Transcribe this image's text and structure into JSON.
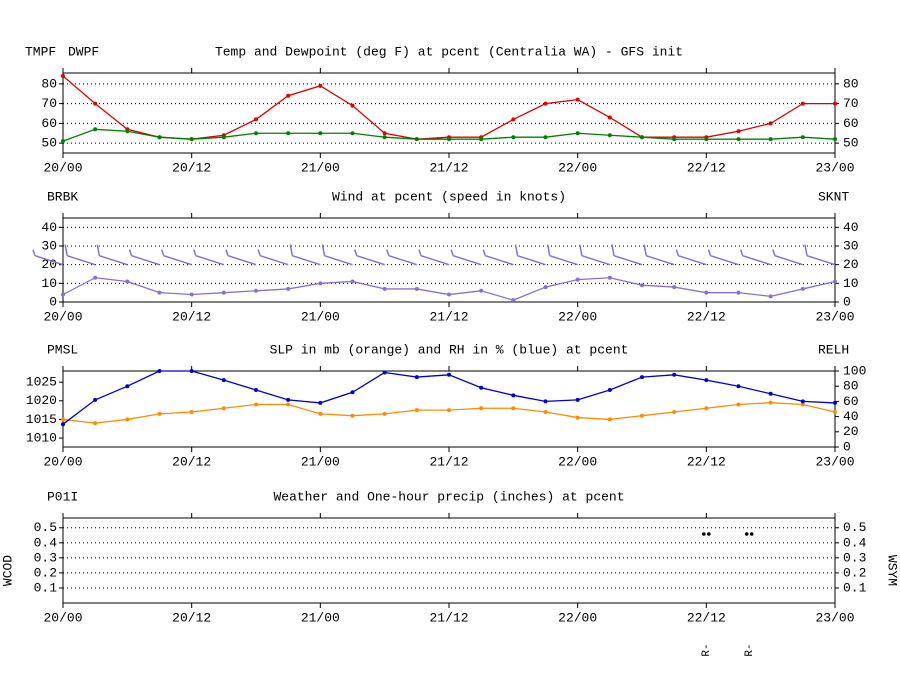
{
  "chart_data": [
    {
      "type": "line",
      "title": "Temp and Dewpoint (deg F) at pcent (Centralia WA) - GFS init",
      "x": [
        0,
        3,
        6,
        9,
        12,
        15,
        18,
        21,
        24,
        27,
        30,
        33,
        36,
        39,
        42,
        45,
        48,
        51,
        54,
        57,
        60,
        63,
        66,
        69,
        72
      ],
      "xlim": [
        0,
        72
      ],
      "xticks": [
        {
          "value": 0,
          "label": "20/00"
        },
        {
          "value": 12,
          "label": "20/12"
        },
        {
          "value": 24,
          "label": "21/00"
        },
        {
          "value": 36,
          "label": "21/12"
        },
        {
          "value": 48,
          "label": "22/00"
        },
        {
          "value": 60,
          "label": "22/12"
        },
        {
          "value": 72,
          "label": "23/00"
        }
      ],
      "ylim": [
        45,
        85.5
      ],
      "yticks": [
        50,
        60,
        70,
        80
      ],
      "grid": true,
      "series": [
        {
          "name": "TMPF",
          "color": "#e00000",
          "values": [
            84,
            70,
            57,
            53,
            52,
            54,
            62,
            74,
            79,
            69,
            55,
            52,
            53,
            53,
            62,
            70,
            72,
            63,
            53,
            53,
            53,
            56,
            60,
            70,
            70
          ]
        },
        {
          "name": "DWPF",
          "color": "#008000",
          "values": [
            51,
            57,
            56,
            53,
            52,
            53,
            55,
            55,
            55,
            55,
            53,
            52,
            52,
            52,
            53,
            53,
            55,
            54,
            53,
            52,
            52,
            52,
            52,
            53,
            52
          ]
        }
      ]
    },
    {
      "type": "line",
      "title": "Wind at  pcent (speed in knots)",
      "barbs_name": "BRBK",
      "barbs_color": "#8a6fd0",
      "x": [
        0,
        3,
        6,
        9,
        12,
        15,
        18,
        21,
        24,
        27,
        30,
        33,
        36,
        39,
        42,
        45,
        48,
        51,
        54,
        57,
        60,
        63,
        66,
        69,
        72
      ],
      "xlim": [
        0,
        72
      ],
      "xticks": [
        {
          "value": 0,
          "label": "20/00"
        },
        {
          "value": 12,
          "label": "20/12"
        },
        {
          "value": 24,
          "label": "21/00"
        },
        {
          "value": 36,
          "label": "21/12"
        },
        {
          "value": 48,
          "label": "22/00"
        },
        {
          "value": 60,
          "label": "22/12"
        },
        {
          "value": 72,
          "label": "23/00"
        }
      ],
      "ylim": [
        0,
        45
      ],
      "yticks": [
        0,
        10,
        20,
        30,
        40
      ],
      "grid": true,
      "series": [
        {
          "name": "SKNT",
          "axis": "y2",
          "color": "#8a6fd0",
          "values": [
            4,
            13,
            11,
            5,
            4,
            5,
            6,
            7,
            10,
            11,
            7,
            7,
            4,
            6,
            1,
            8,
            12,
            13,
            9,
            8,
            5,
            5,
            3,
            7,
            11
          ]
        }
      ]
    },
    {
      "type": "line",
      "title": "SLP in mb (orange) and RH in % (blue) at  pcent",
      "x": [
        0,
        3,
        6,
        9,
        12,
        15,
        18,
        21,
        24,
        27,
        30,
        33,
        36,
        39,
        42,
        45,
        48,
        51,
        54,
        57,
        60,
        63,
        66,
        69,
        72
      ],
      "xlim": [
        0,
        72
      ],
      "xticks": [
        {
          "value": 0,
          "label": "20/00"
        },
        {
          "value": 12,
          "label": "20/12"
        },
        {
          "value": 24,
          "label": "21/00"
        },
        {
          "value": 36,
          "label": "21/12"
        },
        {
          "value": 48,
          "label": "22/00"
        },
        {
          "value": 60,
          "label": "22/12"
        },
        {
          "value": 72,
          "label": "23/00"
        }
      ],
      "ylim": [
        1007.6,
        1028
      ],
      "yticks": [
        1010,
        1015,
        1020,
        1025
      ],
      "y2lim": [
        0,
        100
      ],
      "y2ticks": [
        0,
        20,
        40,
        60,
        80,
        100
      ],
      "grid": false,
      "series": [
        {
          "name": "PMSL",
          "color": "#ff8c00",
          "values": [
            1015,
            1014,
            1015,
            1016.5,
            1017,
            1018,
            1019,
            1019,
            1016.5,
            1016,
            1016.5,
            1017.5,
            1017.5,
            1018,
            1018,
            1017,
            1015.5,
            1015,
            1016,
            1017,
            1018,
            1019,
            1019.5,
            1019,
            1017
          ]
        },
        {
          "name": "RELH",
          "axis": "y2",
          "color": "#0000cd",
          "values": [
            30,
            62,
            80,
            100,
            100,
            88,
            75,
            62,
            58,
            72,
            98,
            92,
            95,
            78,
            68,
            60,
            62,
            75,
            92,
            95,
            88,
            80,
            70,
            60,
            58
          ]
        }
      ]
    },
    {
      "type": "bar",
      "title": "Weather and One-hour precip (inches) at  pcent",
      "y_label": "WCOD",
      "y2_label": "WSYM",
      "x": [
        0,
        3,
        6,
        9,
        12,
        15,
        18,
        21,
        24,
        27,
        30,
        33,
        36,
        39,
        42,
        45,
        48,
        51,
        54,
        57,
        60,
        63,
        66,
        69,
        72
      ],
      "xlim": [
        0,
        72
      ],
      "xticks": [
        {
          "value": 0,
          "label": "20/00"
        },
        {
          "value": 12,
          "label": "20/12"
        },
        {
          "value": 24,
          "label": "21/00"
        },
        {
          "value": 36,
          "label": "21/12"
        },
        {
          "value": 48,
          "label": "22/00"
        },
        {
          "value": 60,
          "label": "22/12"
        },
        {
          "value": 72,
          "label": "23/00"
        }
      ],
      "ylim": [
        0,
        0.565
      ],
      "yticks": [
        0.1,
        0.2,
        0.3,
        0.4,
        0.5
      ],
      "grid": true,
      "weather": [
        {
          "x": 60,
          "label": "R-"
        },
        {
          "x": 64,
          "label": "R-"
        }
      ],
      "weather_color": "#1f5fa8",
      "series": [
        {
          "name": "P01I",
          "color": "#008000",
          "values": [
            0,
            0,
            0,
            0,
            0,
            0,
            0,
            0,
            0,
            0,
            0,
            0,
            0,
            0,
            0,
            0,
            0,
            0,
            0,
            0,
            0,
            0,
            0,
            0,
            0
          ]
        }
      ]
    }
  ]
}
